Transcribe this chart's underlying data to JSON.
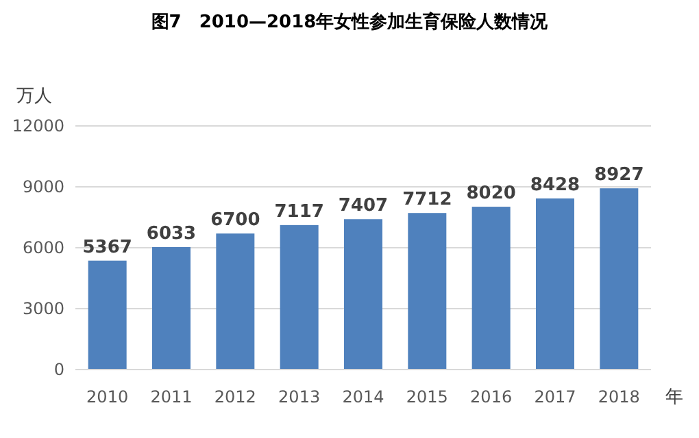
{
  "chart_data": {
    "type": "bar",
    "title": "图7　2010—2018年女性参加生育保险人数情况",
    "xlabel": "年",
    "ylabel": "万人",
    "categories": [
      "2010",
      "2011",
      "2012",
      "2013",
      "2014",
      "2015",
      "2016",
      "2017",
      "2018"
    ],
    "values": [
      5367,
      6033,
      6700,
      7117,
      7407,
      7712,
      8020,
      8428,
      8927
    ],
    "color": "#4f81bd",
    "ylim": [
      0,
      12000
    ],
    "yticks": [
      0,
      3000,
      6000,
      9000,
      12000
    ],
    "grid": "y",
    "data_labels": true
  }
}
